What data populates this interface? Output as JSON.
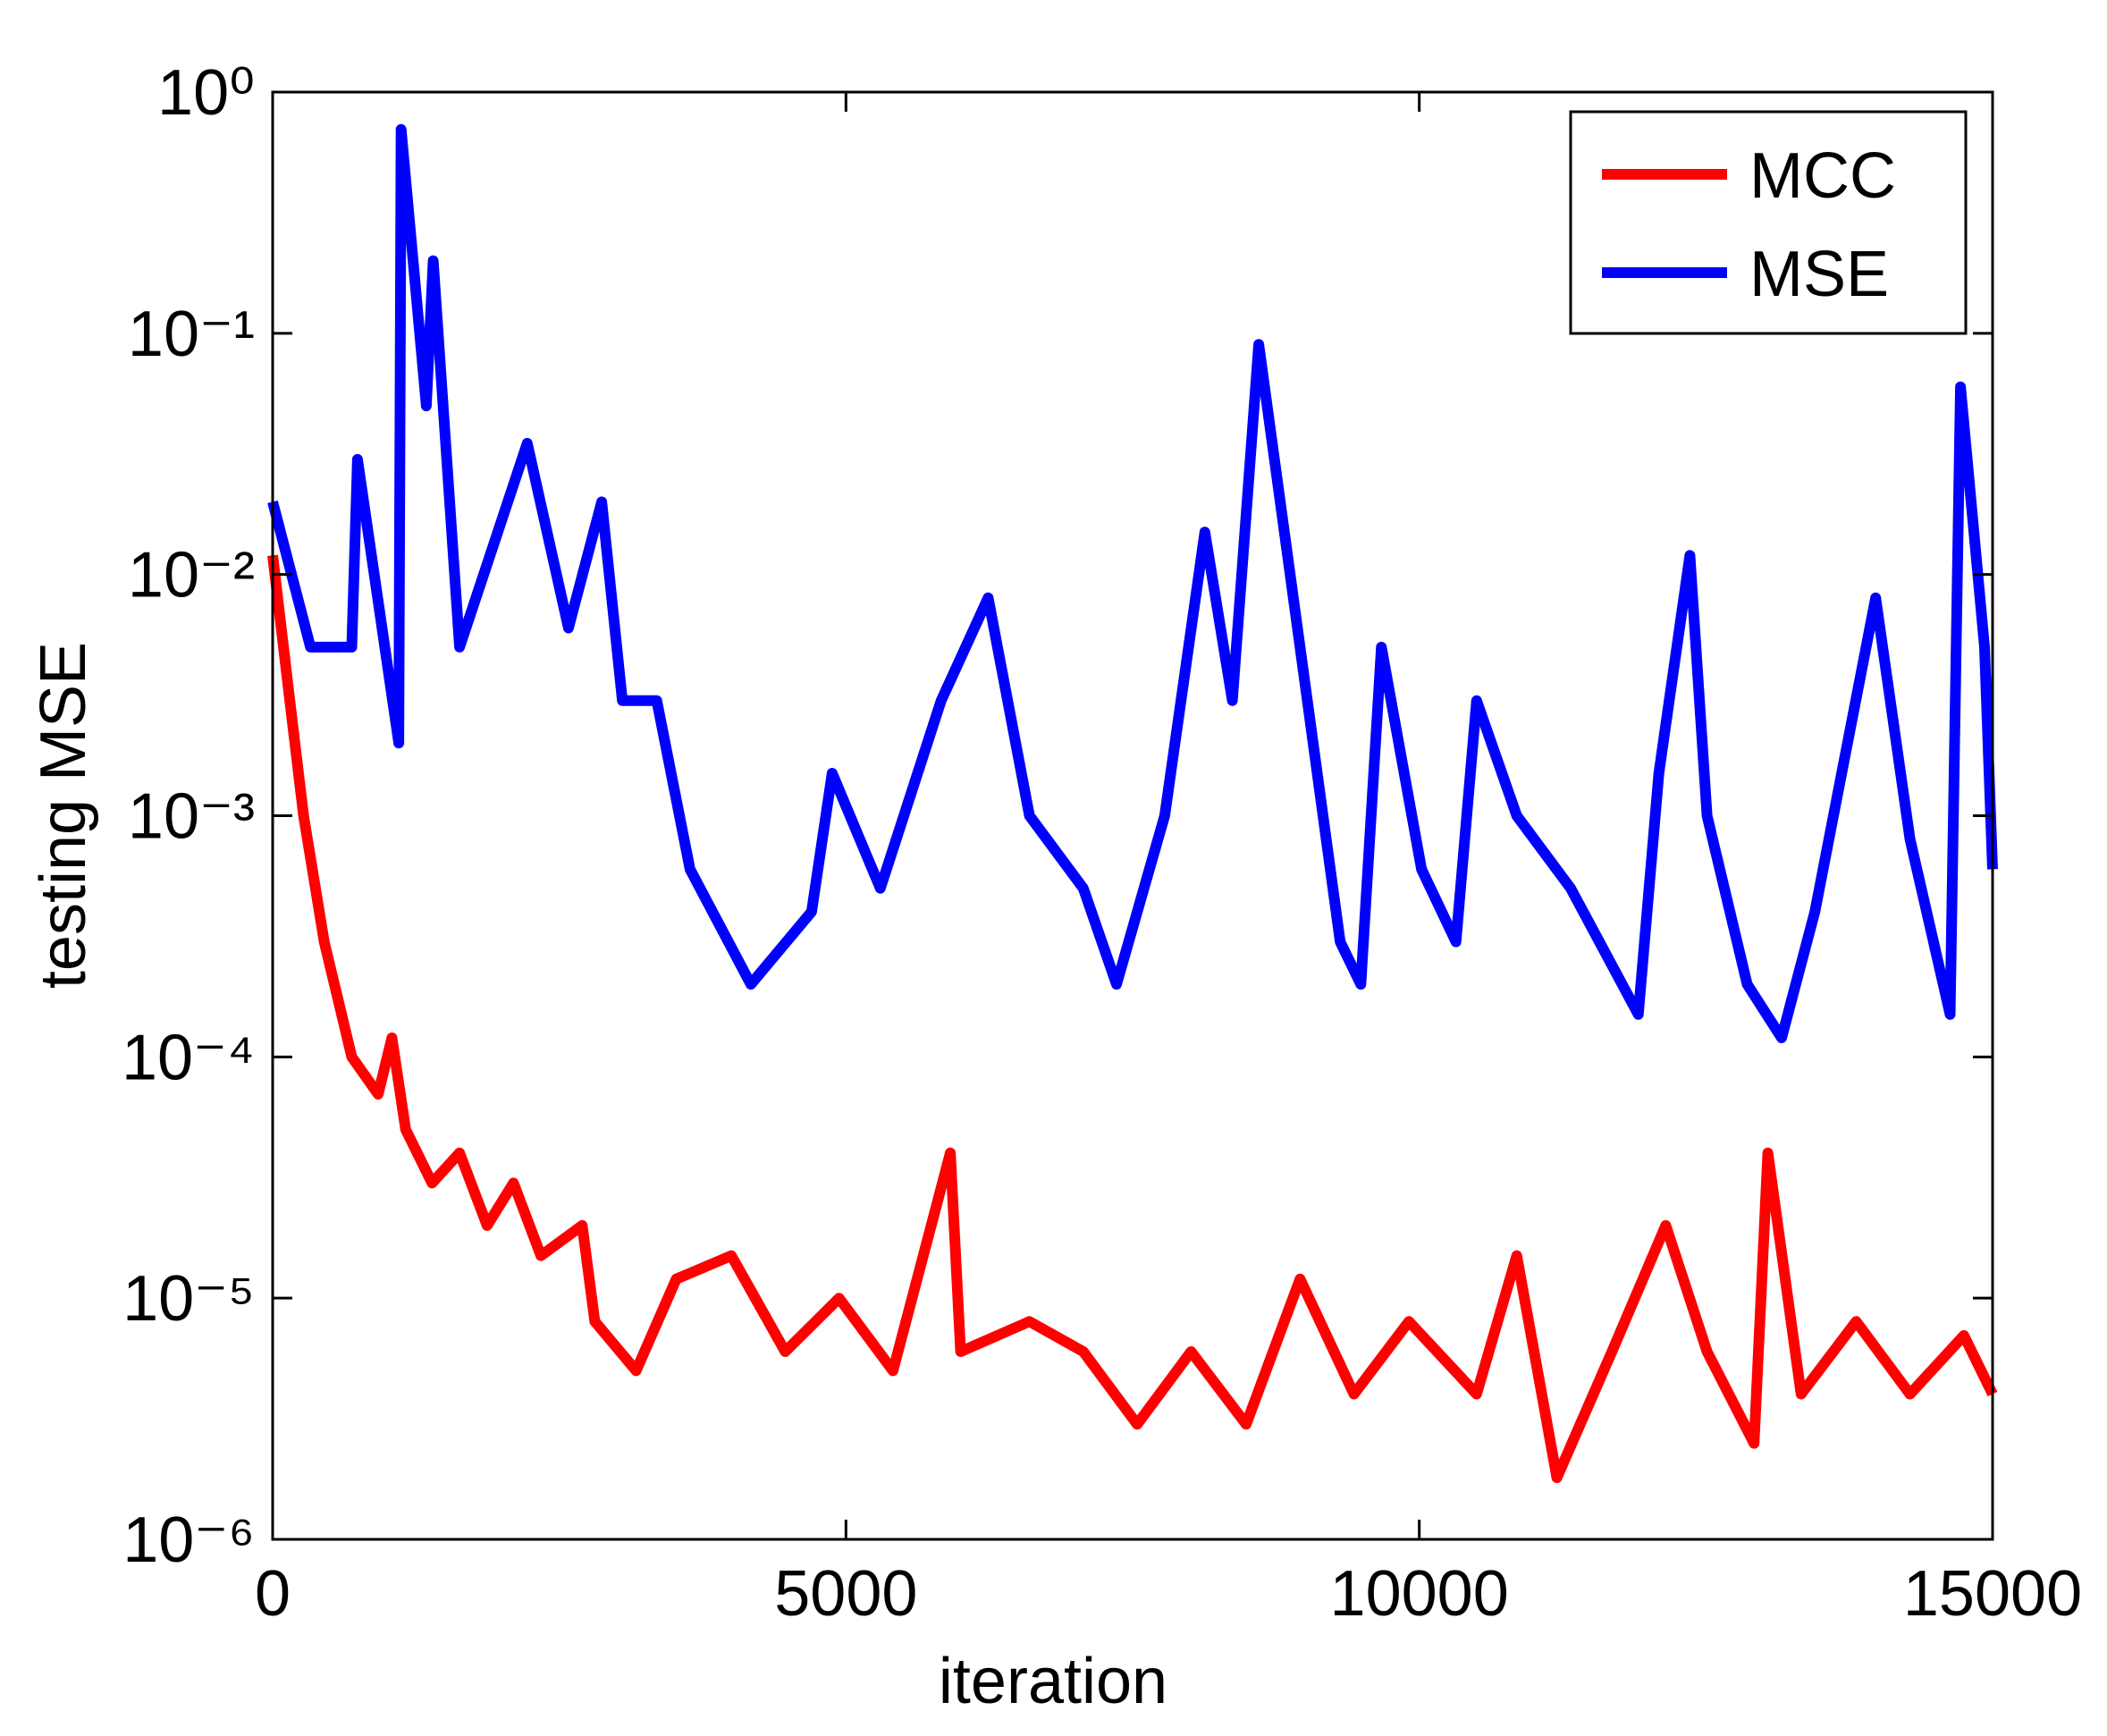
{
  "chart_data": {
    "type": "line",
    "xlabel": "iteration",
    "ylabel": "testing MSE",
    "xlim": [
      0,
      15000
    ],
    "xticks": [
      0,
      5000,
      10000,
      15000
    ],
    "ylim": [
      1e-06,
      1
    ],
    "log_y": true,
    "yticks": [
      {
        "value": 1e-06,
        "label": "10⁻⁶"
      },
      {
        "value": 1e-05,
        "label": "10⁻⁵"
      },
      {
        "value": 0.0001,
        "label": "10⁻⁴"
      },
      {
        "value": 0.001,
        "label": "10⁻³"
      },
      {
        "value": 0.01,
        "label": "10⁻²"
      },
      {
        "value": 0.1,
        "label": "10⁻¹"
      },
      {
        "value": 1,
        "label": "10⁰"
      }
    ],
    "legend": "upper right",
    "series": [
      {
        "name": "MCC",
        "color": "#ff0000",
        "x": [
          0,
          150,
          270,
          450,
          690,
          920,
          1040,
          1160,
          1390,
          1630,
          1870,
          2100,
          2340,
          2700,
          2810,
          3170,
          3520,
          4000,
          4470,
          4940,
          5410,
          5910,
          6000,
          6600,
          7070,
          7540,
          8010,
          8490,
          8960,
          9430,
          9910,
          10500,
          10850,
          11200,
          11680,
          12150,
          12510,
          12920,
          13040,
          13330,
          13810,
          14280,
          14750,
          15000
        ],
        "values": [
          0.012,
          0.003,
          0.001,
          0.0003,
          0.0001,
          7e-05,
          0.00012,
          5e-05,
          3e-05,
          4e-05,
          2e-05,
          3e-05,
          1.5e-05,
          2e-05,
          8e-06,
          5e-06,
          1.2e-05,
          1.5e-05,
          6e-06,
          1e-05,
          5e-06,
          4e-05,
          6e-06,
          8e-06,
          6e-06,
          3e-06,
          6e-06,
          3e-06,
          1.2e-05,
          4e-06,
          8e-06,
          4e-06,
          1.5e-05,
          1.8e-06,
          6e-06,
          2e-05,
          6e-06,
          2.5e-06,
          4e-05,
          4e-06,
          8e-06,
          4e-06,
          7e-06,
          4e-06
        ]
      },
      {
        "name": "MSE",
        "color": "#0000ff",
        "x": [
          0,
          330,
          690,
          740,
          1100,
          1120,
          1340,
          1400,
          1630,
          2220,
          2580,
          2870,
          3050,
          3350,
          3640,
          4170,
          4700,
          4880,
          5300,
          5830,
          6240,
          6600,
          7070,
          7360,
          7780,
          8130,
          8370,
          8600,
          8960,
          9310,
          9490,
          9670,
          10020,
          10320,
          10500,
          10850,
          11320,
          11910,
          12090,
          12360,
          12510,
          12860,
          13160,
          13450,
          13980,
          14280,
          14630,
          14720,
          14930,
          15000
        ],
        "values": [
          0.02,
          0.005,
          0.005,
          0.03,
          0.002,
          0.7,
          0.05,
          0.2,
          0.005,
          0.035,
          0.006,
          0.02,
          0.003,
          0.003,
          0.0006,
          0.0002,
          0.0004,
          0.0015,
          0.0005,
          0.003,
          0.008,
          0.001,
          0.0005,
          0.0002,
          0.001,
          0.015,
          0.003,
          0.09,
          0.005,
          0.0003,
          0.0002,
          0.005,
          0.0006,
          0.0003,
          0.003,
          0.001,
          0.0005,
          0.00015,
          0.0015,
          0.012,
          0.001,
          0.0002,
          0.00012,
          0.0004,
          0.008,
          0.0008,
          0.00015,
          0.06,
          0.005,
          0.0006
        ]
      }
    ]
  }
}
